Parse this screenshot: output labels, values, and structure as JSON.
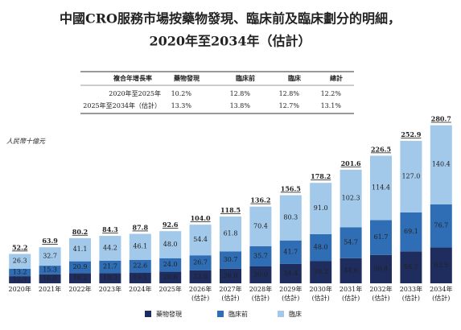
{
  "chart_data": {
    "type": "stacked-bar",
    "title": [
      "中國CRO服務市場按藥物發現、臨床前及臨床劃分的明細，",
      "2020年至2034年（估計）"
    ],
    "y_unit": "人民幣十億元",
    "categories": [
      "2020年",
      "2021年",
      "2022年",
      "2023年",
      "2024年",
      "2025年",
      "2026年(估計)",
      "2027年(估計)",
      "2028年(估計)",
      "2029年(估計)",
      "2030年(估計)",
      "2031年(估計)",
      "2032年(估計)",
      "2033年(估計)",
      "2034年(估計)"
    ],
    "series": [
      {
        "name": "藥物發現",
        "color": "#1f2c5e",
        "values": [
          12.7,
          16.0,
          18.2,
          18.3,
          19.1,
          20.6,
          23.0,
          26.0,
          30.0,
          34.4,
          39.3,
          44.6,
          50.4,
          56.7,
          63.5
        ],
        "value_labels": [
          "12.7",
          "16.0",
          "18.2",
          "18.3",
          "19.1",
          "20.6",
          "23.0",
          "26.0",
          "30.0",
          "34.4",
          "39.3",
          "44.6",
          "50.4",
          "56.7",
          "63.5"
        ]
      },
      {
        "name": "臨床前",
        "color": "#2f6db5",
        "values": [
          13.2,
          15.3,
          20.9,
          21.7,
          22.6,
          24.0,
          26.7,
          30.7,
          35.7,
          41.7,
          48.0,
          54.7,
          61.7,
          69.1,
          76.7
        ],
        "value_labels": [
          "13.2",
          "15.3",
          "20.9",
          "21.7",
          "22.6",
          "24.0",
          "26.7",
          "30.7",
          "35.7",
          "41.7",
          "48.0",
          "54.7",
          "61.7",
          "69.1",
          "76.7"
        ]
      },
      {
        "name": "臨床",
        "color": "#a2c8ea",
        "values": [
          26.3,
          32.7,
          41.1,
          44.2,
          46.1,
          48.0,
          54.4,
          61.8,
          70.4,
          80.3,
          91.0,
          102.3,
          114.4,
          127.0,
          140.4
        ],
        "value_labels": [
          "26.3",
          "32.7",
          "41.1",
          "44.2",
          "46.1",
          "48.0",
          "54.4",
          "61.8",
          "70.4",
          "80.3",
          "91.0",
          "102.3",
          "114.4",
          "127.0",
          "140.4"
        ]
      }
    ],
    "totals": [
      52.2,
      63.9,
      80.2,
      84.3,
      87.8,
      92.6,
      104.0,
      118.5,
      136.2,
      156.5,
      178.2,
      201.6,
      226.5,
      252.9,
      280.7
    ],
    "total_labels": [
      "52.2",
      "63.9",
      "80.2",
      "84.3",
      "87.8",
      "92.6",
      "104.0",
      "118.5",
      "136.2",
      "156.5",
      "178.2",
      "201.6",
      "226.5",
      "252.9",
      "280.7"
    ],
    "ylim": [
      0,
      300
    ]
  },
  "table": {
    "header": [
      "複合年增長率",
      "藥物發現",
      "臨床前",
      "臨床",
      "總計"
    ],
    "rows": [
      [
        "2020年至2025年",
        "10.2%",
        "12.8%",
        "12.8%",
        "12.2%"
      ],
      [
        "2025年至2034年（估計）",
        "13.3%",
        "13.8%",
        "12.7%",
        "13.1%"
      ]
    ]
  }
}
